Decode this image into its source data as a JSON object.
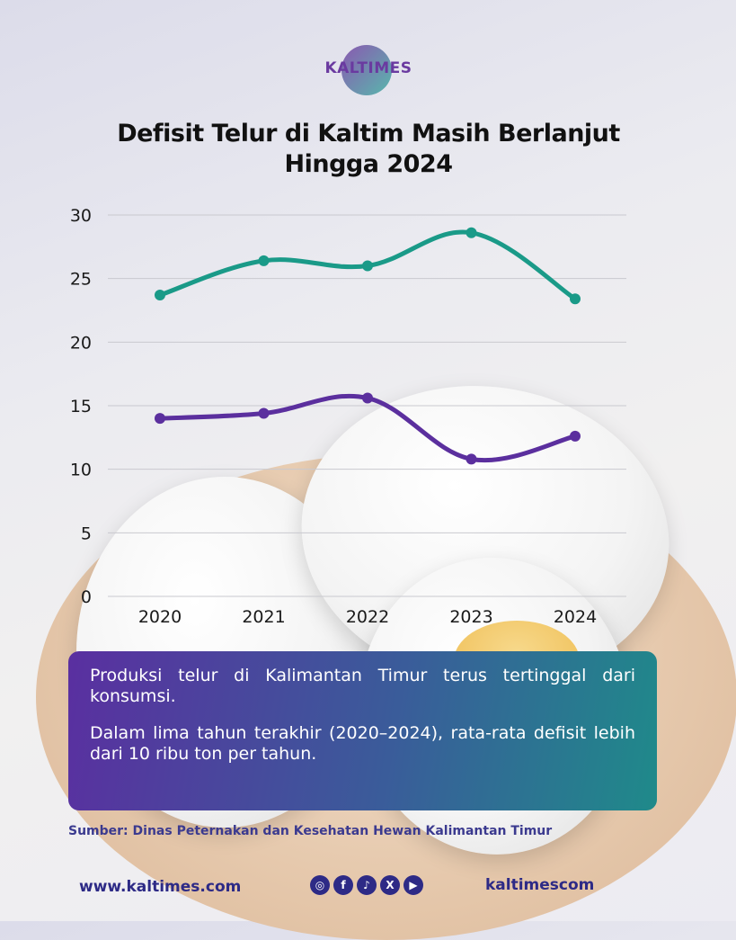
{
  "logo": {
    "text": "KALTIMES"
  },
  "title_line1": "Defisit Telur di Kaltim Masih Berlanjut",
  "title_line2": "Hingga 2024",
  "chart_data": {
    "type": "line",
    "categories": [
      "2020",
      "2021",
      "2022",
      "2023",
      "2024"
    ],
    "series": [
      {
        "color": "#1a9a88",
        "values": [
          23.7,
          26.4,
          26.0,
          28.6,
          23.4
        ]
      },
      {
        "color": "#5b2f9e",
        "values": [
          14.0,
          14.4,
          15.6,
          10.8,
          12.6
        ]
      }
    ],
    "ylim": [
      0,
      30
    ],
    "yticks": [
      "0",
      "5",
      "10",
      "15",
      "20",
      "25",
      "30"
    ],
    "grid": true
  },
  "info": {
    "paragraph1": "Produksi telur di Kalimantan Timur terus tertinggal dari konsumsi.",
    "paragraph2": "Dalam lima tahun terakhir (2020–2024), rata-rata defisit lebih dari 10 ribu ton per tahun."
  },
  "source": "Sumber: Dinas Peternakan dan Kesehatan Hewan Kalimantan Timur",
  "footer": {
    "website": "www.kaltimes.com",
    "handle": "kaltimescom",
    "social_icons": [
      "instagram-icon",
      "facebook-icon",
      "tiktok-icon",
      "x-icon",
      "youtube-icon"
    ]
  }
}
